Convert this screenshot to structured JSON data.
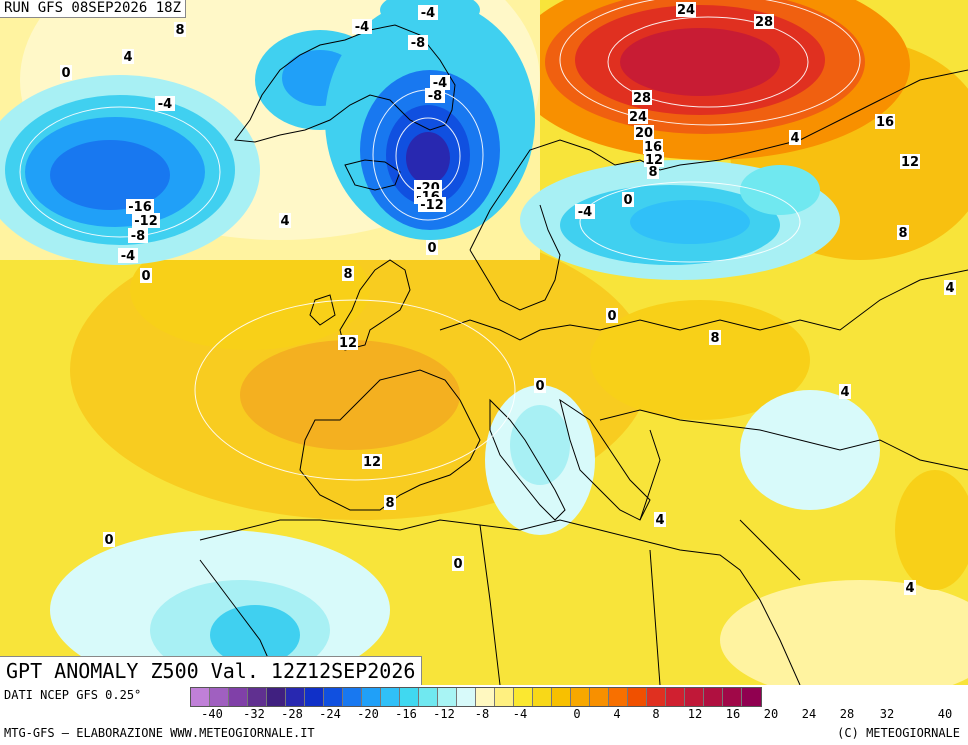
{
  "header": {
    "run": "RUN GFS 08SEP2026 18Z",
    "title": "GPT ANOMALY Z500 Val. 12Z12SEP2026"
  },
  "footer": {
    "source": "DATI NCEP GFS 0.25°",
    "credit": "MTG-GFS — ELABORAZIONE WWW.METEOGIORNALE.IT",
    "copyright": "(C) METEOGIORNALE"
  },
  "legend": {
    "colors": [
      "#c080d8",
      "#a060c0",
      "#8040a8",
      "#603090",
      "#402080",
      "#2828b0",
      "#1030c8",
      "#1050e0",
      "#1878f0",
      "#20a0f8",
      "#30c0f8",
      "#40d8f0",
      "#70e8f0",
      "#a8f4f4",
      "#d8fafa",
      "#fff8c0",
      "#fff080",
      "#fbe830",
      "#f8d818",
      "#f8c000",
      "#f8a800",
      "#f89000",
      "#f87000",
      "#f05000",
      "#e03020",
      "#d02030",
      "#c01838",
      "#b01040",
      "#a00848",
      "#900050"
    ],
    "ticks": [
      "-40",
      "-32",
      "-28",
      "-24",
      "-20",
      "-16",
      "-12",
      "-8",
      "-4",
      "0",
      "4",
      "8",
      "12",
      "16",
      "20",
      "24",
      "28",
      "32",
      "40"
    ]
  },
  "map": {
    "labels": [
      "8",
      "4",
      "0",
      "-4",
      "-16",
      "-12",
      "-8",
      "-4",
      "0",
      "-4",
      "-4",
      "-8",
      "-4",
      "-8",
      "-20",
      "-16",
      "-12",
      "0",
      "4",
      "8",
      "12",
      "12",
      "8",
      "0",
      "24",
      "28",
      "28",
      "24",
      "20",
      "16",
      "12",
      "8",
      "-4",
      "0",
      "4",
      "16",
      "12",
      "8",
      "4",
      "0",
      "0",
      "8",
      "4",
      "4",
      "0",
      "4",
      "4"
    ]
  }
}
